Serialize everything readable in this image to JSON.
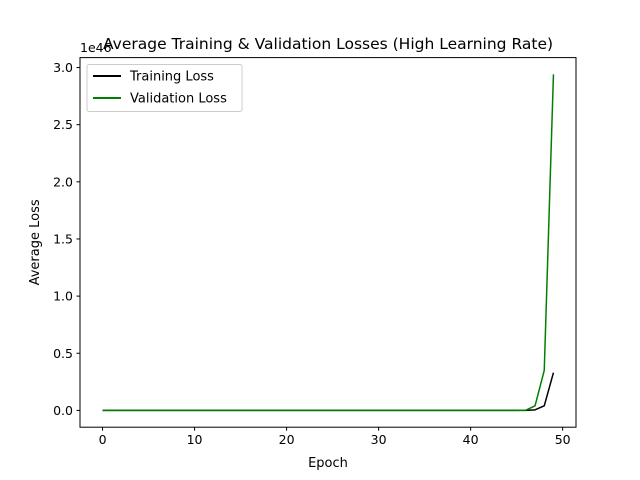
{
  "chart_data": {
    "type": "line",
    "title": "Average Training & Validation Losses (High Learning Rate)",
    "xlabel": "Epoch",
    "ylabel": "Average Loss",
    "y_offset_label": "1e46",
    "xlim": [
      -2.45,
      51.45
    ],
    "ylim": [
      -0.147,
      3.087
    ],
    "x_ticks": [
      0,
      10,
      20,
      30,
      40,
      50
    ],
    "x_tick_labels": [
      "0",
      "10",
      "20",
      "30",
      "40",
      "50"
    ],
    "y_ticks": [
      0.0,
      0.5,
      1.0,
      1.5,
      2.0,
      2.5,
      3.0
    ],
    "y_tick_labels": [
      "0.0",
      "0.5",
      "1.0",
      "1.5",
      "2.0",
      "2.5",
      "3.0"
    ],
    "grid": false,
    "legend_position": "upper-left",
    "x": [
      0,
      1,
      2,
      3,
      4,
      5,
      6,
      7,
      8,
      9,
      10,
      11,
      12,
      13,
      14,
      15,
      16,
      17,
      18,
      19,
      20,
      21,
      22,
      23,
      24,
      25,
      26,
      27,
      28,
      29,
      30,
      31,
      32,
      33,
      34,
      35,
      36,
      37,
      38,
      39,
      40,
      41,
      42,
      43,
      44,
      45,
      46,
      47,
      48,
      49
    ],
    "series": [
      {
        "name": "Training Loss",
        "color": "#000000",
        "values": [
          0,
          0,
          0,
          0,
          0,
          0,
          0,
          0,
          0,
          0,
          0,
          0,
          0,
          0,
          0,
          0,
          0,
          0,
          0,
          0,
          0,
          0,
          0,
          0,
          0,
          0,
          0,
          0,
          0,
          0,
          0,
          0,
          0,
          0,
          0,
          0,
          0,
          0,
          0,
          0,
          0,
          0,
          0,
          0,
          0,
          0,
          0.0003,
          0.005,
          0.04,
          0.33
        ]
      },
      {
        "name": "Validation Loss",
        "color": "#008000",
        "values": [
          0,
          0,
          0,
          0,
          0,
          0,
          0,
          0,
          0,
          0,
          0,
          0,
          0,
          0,
          0,
          0,
          0,
          0,
          0,
          0,
          0,
          0,
          0,
          0,
          0,
          0,
          0,
          0,
          0,
          0,
          0,
          0,
          0,
          0,
          0,
          0,
          0,
          0,
          0,
          0,
          0,
          0,
          0,
          0,
          0,
          0,
          0.002,
          0.04,
          0.35,
          2.94
        ]
      }
    ]
  }
}
